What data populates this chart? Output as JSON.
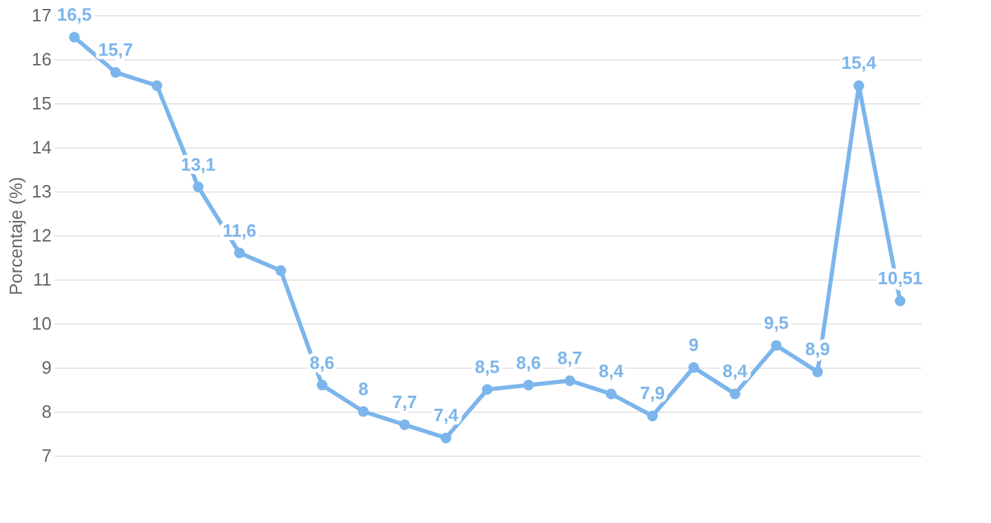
{
  "chart_data": {
    "type": "line",
    "ylabel": "Porcentaje (%)",
    "categories": [
      null,
      null,
      null,
      null,
      null,
      null,
      null,
      null,
      null,
      null,
      null,
      null,
      null,
      null,
      null,
      null,
      null,
      null,
      null,
      null,
      null
    ],
    "series": [
      {
        "color": "#7cb5ec",
        "values": [
          16.5,
          15.7,
          15.4,
          13.1,
          11.6,
          11.2,
          8.6,
          8.0,
          7.7,
          7.4,
          8.5,
          8.6,
          8.7,
          8.4,
          7.9,
          9.0,
          8.4,
          9.5,
          8.9,
          15.4,
          10.51
        ],
        "value_labels": [
          "16,5",
          "15,7",
          null,
          "13,1",
          "11,6",
          null,
          "8,6",
          "8",
          "7,7",
          "7,4",
          "8,5",
          "8,6",
          "8,7",
          "8,4",
          "7,9",
          "9",
          "8,4",
          "9,5",
          "8,9",
          "15,4",
          "10,51"
        ]
      }
    ],
    "ylim": [
      7,
      17
    ],
    "yticks": [
      7,
      8,
      9,
      10,
      11,
      12,
      13,
      14,
      15,
      16,
      17
    ],
    "grid": "y",
    "marker": "circle",
    "line_style": "solid",
    "tick_labels": "y"
  }
}
